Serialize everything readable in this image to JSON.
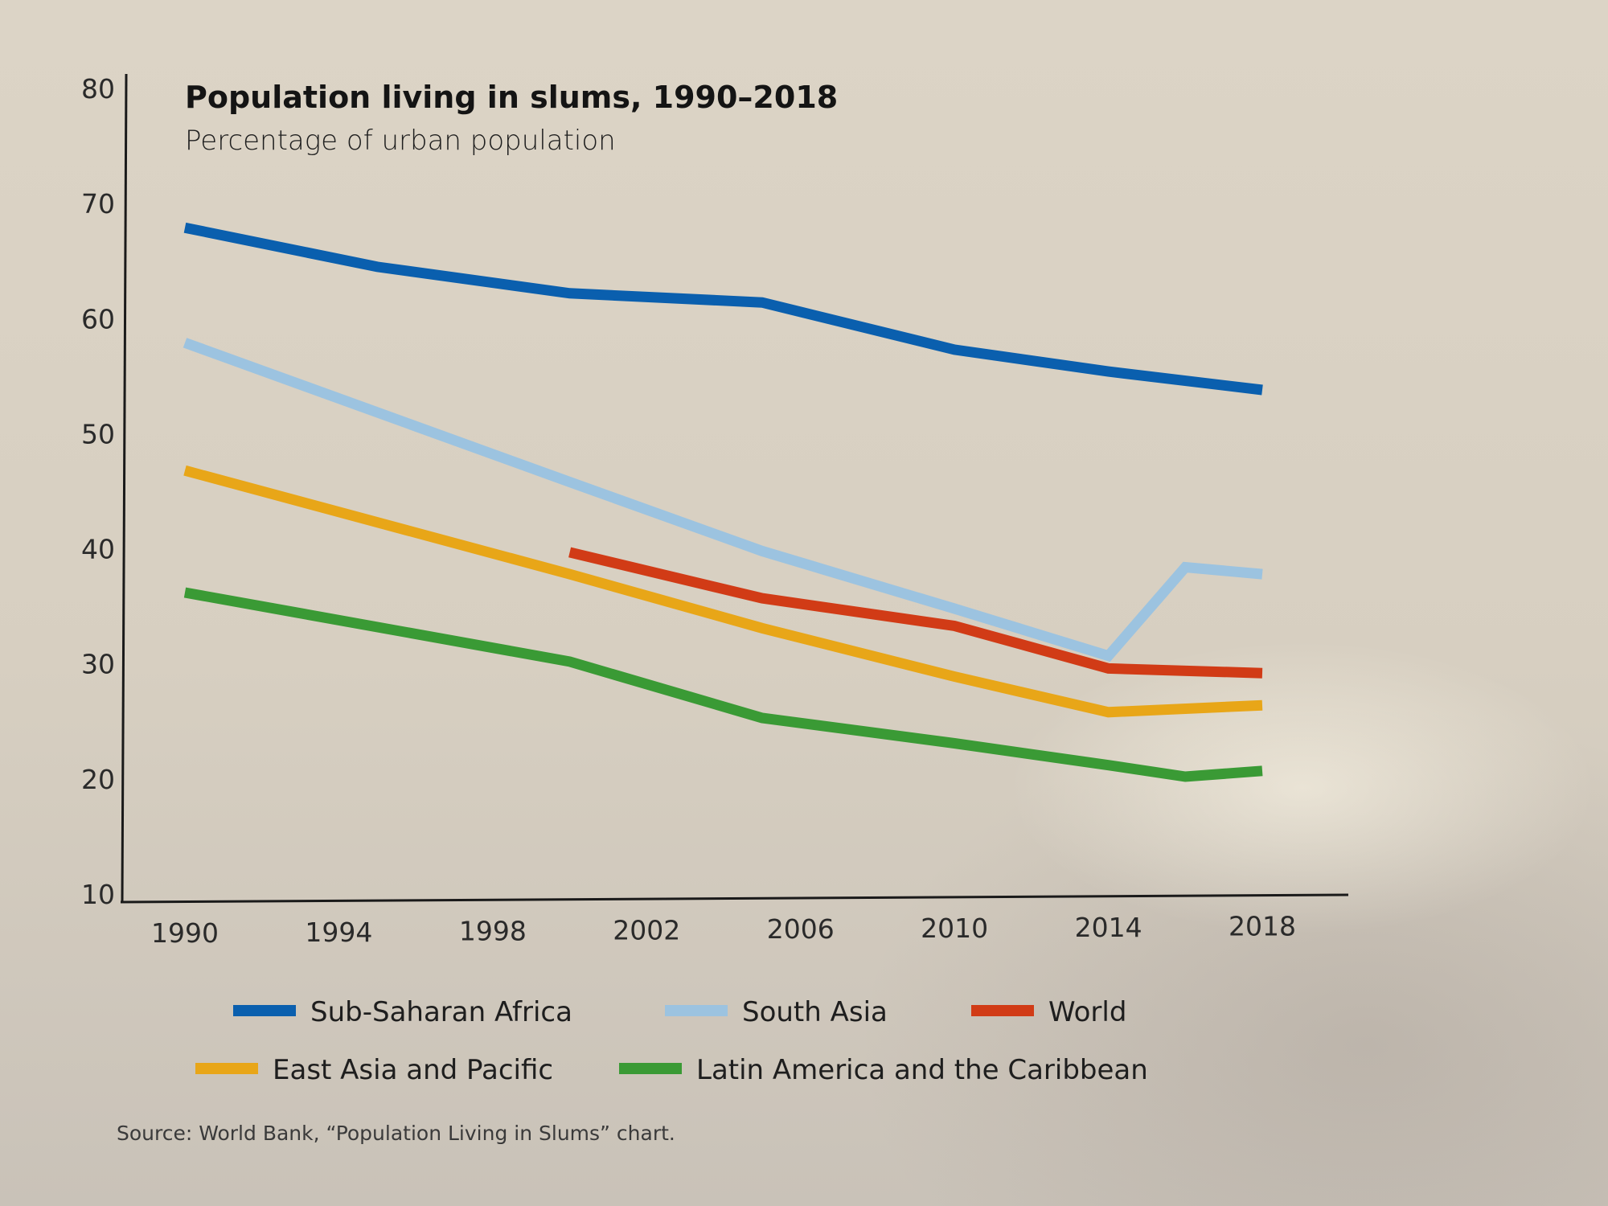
{
  "chart_data": {
    "type": "line",
    "title": "Population living in slums, 1990–2018",
    "subtitle": "Percentage of urban population",
    "xlabel": "",
    "ylabel": "",
    "xlim": [
      1990,
      2018
    ],
    "ylim": [
      10,
      80
    ],
    "x_ticks": [
      "1990",
      "1994",
      "1998",
      "2002",
      "2006",
      "2010",
      "2014",
      "2018"
    ],
    "y_ticks": [
      "80",
      "70",
      "60",
      "50",
      "40",
      "30",
      "20",
      "10"
    ],
    "grid": false,
    "legend_position": "bottom",
    "series": [
      {
        "name": "Sub-Saharan Africa",
        "color": "#0a5fae",
        "points": [
          [
            1990,
            67.9
          ],
          [
            1995,
            64.5
          ],
          [
            2000,
            62.2
          ],
          [
            2005,
            61.4
          ],
          [
            2010,
            57.3
          ],
          [
            2014,
            55.4
          ],
          [
            2018,
            53.8
          ]
        ]
      },
      {
        "name": "South Asia",
        "color": "#9cc3e0",
        "points": [
          [
            1990,
            57.9
          ],
          [
            2000,
            45.8
          ],
          [
            2005,
            39.8
          ],
          [
            2010,
            34.8
          ],
          [
            2014,
            30.7
          ],
          [
            2016,
            38.4
          ],
          [
            2018,
            37.8
          ]
        ]
      },
      {
        "name": "World",
        "color": "#d13b16",
        "points": [
          [
            2000,
            39.7
          ],
          [
            2005,
            35.7
          ],
          [
            2010,
            33.3
          ],
          [
            2014,
            29.6
          ],
          [
            2018,
            29.2
          ]
        ]
      },
      {
        "name": "East Asia and Pacific",
        "color": "#e8a618",
        "points": [
          [
            1990,
            46.8
          ],
          [
            2000,
            37.8
          ],
          [
            2005,
            33.1
          ],
          [
            2010,
            28.9
          ],
          [
            2014,
            25.8
          ],
          [
            2018,
            26.4
          ]
        ]
      },
      {
        "name": "Latin America and the Caribbean",
        "color": "#3a9a35",
        "points": [
          [
            1990,
            36.2
          ],
          [
            2000,
            30.2
          ],
          [
            2005,
            25.3
          ],
          [
            2010,
            23.1
          ],
          [
            2014,
            21.2
          ],
          [
            2016,
            20.2
          ],
          [
            2018,
            20.7
          ]
        ]
      }
    ],
    "source": "Source: World Bank, “Population Living in Slums” chart."
  },
  "legend": {
    "row1": [
      0,
      1,
      2
    ],
    "row2": [
      3,
      4
    ]
  }
}
